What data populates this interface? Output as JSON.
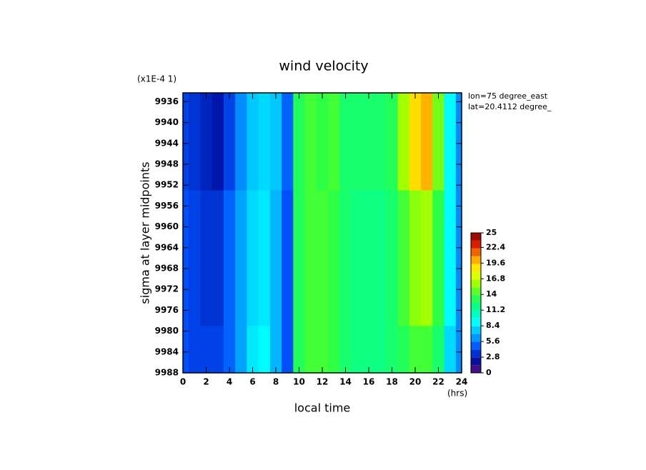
{
  "chart_data": {
    "type": "contour",
    "title": "wind velocity",
    "y_scale_note": "(x1E-4 1)",
    "xlabel": "local time",
    "x_unit": "(hrs)",
    "ylabel": "sigma at layer midpoints",
    "annotations": [
      "lon=75 degree_east",
      "lat=20.4112 degree_"
    ],
    "x": [
      0,
      1,
      2,
      3,
      4,
      5,
      6,
      7,
      8,
      9,
      10,
      11,
      12,
      13,
      14,
      15,
      16,
      17,
      18,
      19,
      20,
      21,
      22,
      23,
      24
    ],
    "y": [
      9936,
      9970,
      9988
    ],
    "z": [
      [
        4,
        3.5,
        3,
        2.5,
        4,
        6,
        7.5,
        8,
        7.5,
        5,
        13,
        14,
        13.5,
        14,
        12.5,
        12.5,
        12.5,
        12.5,
        13,
        16,
        19,
        20,
        15,
        9,
        6
      ],
      [
        4.5,
        4,
        3.5,
        3.5,
        5,
        6.5,
        8,
        8.5,
        7,
        4.5,
        13,
        14,
        14,
        13.5,
        12.5,
        12,
        12,
        12,
        12.5,
        14,
        15.5,
        16,
        13.5,
        9,
        6
      ],
      [
        4.5,
        4,
        4,
        4,
        5,
        6.5,
        8.5,
        9,
        7,
        4.5,
        13,
        14,
        14,
        13.5,
        12.5,
        12,
        12,
        12,
        12.5,
        13,
        14,
        14,
        12.5,
        8,
        6
      ]
    ],
    "xlim": [
      0,
      24
    ],
    "xticks": [
      0,
      2,
      4,
      6,
      8,
      10,
      12,
      14,
      16,
      18,
      20,
      22,
      24
    ],
    "ylim": [
      9934.3,
      9988
    ],
    "yreversed": true,
    "yticks": [
      9936,
      9940,
      9944,
      9948,
      9952,
      9956,
      9960,
      9964,
      9968,
      9972,
      9976,
      9980,
      9984,
      9988
    ],
    "zlim": [
      0,
      25
    ],
    "zticks": [
      0,
      2.8,
      5.6,
      8.4,
      11.2,
      14,
      16.8,
      19.6,
      22.4,
      25
    ],
    "colormap": [
      "#5a1080",
      "#0010a0",
      "#0050ff",
      "#00b0ff",
      "#00ffff",
      "#00ff9a",
      "#30ff40",
      "#a0ff00",
      "#ffff00",
      "#ffa000",
      "#e02000",
      "#800000"
    ]
  }
}
